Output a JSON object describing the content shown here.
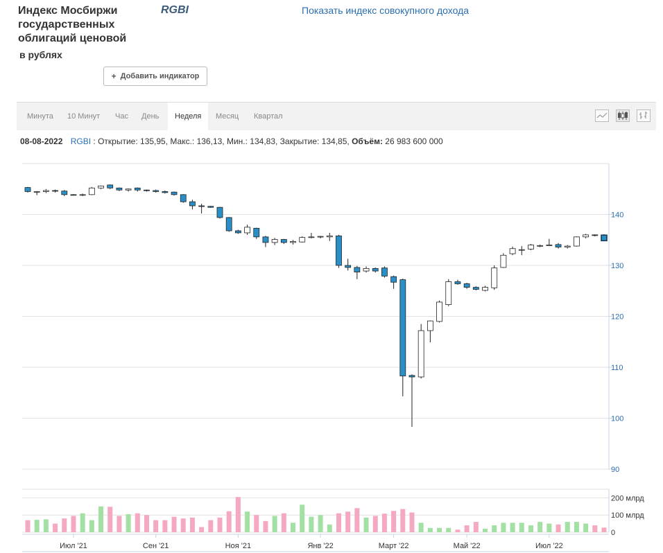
{
  "header": {
    "title": "Индекс Мосбиржи государственных облигаций ценовой",
    "subtitle": "в рублях",
    "ticker": "RGBI",
    "show_total_return": "Показать индекс совокупного дохода",
    "add_indicator": "Добавить индикатор"
  },
  "periods": [
    "Минута",
    "10 Минут",
    "Час",
    "День",
    "Неделя",
    "Месяц",
    "Квартал"
  ],
  "active_period": "Неделя",
  "chart_types": [
    "line-chart-icon",
    "candlestick-chart-icon",
    "ohlc-bars-icon"
  ],
  "info": {
    "date": "08-08-2022",
    "symbol": "RGBI",
    "open_text": "Открытие: 135,95",
    "high_text": "Макс.: 136,13",
    "low_text": "Мин.: 134,83",
    "close_text": "Закрытие: 134,85",
    "volume_label": "Объём:",
    "volume_value": "26 983 600 000"
  },
  "colors": {
    "up": "#ffffff",
    "down": "#2b8fc7",
    "vol_up": "#a3e0a3",
    "vol_down": "#f5a9c0",
    "axis_text": "#2a6db0"
  },
  "chart_data": {
    "type": "candlestick",
    "ylim": [
      90,
      150
    ],
    "y_ticks": [
      90,
      100,
      110,
      120,
      130,
      140
    ],
    "y_tick_labels": [
      "90",
      "100",
      "110",
      "120",
      "130",
      "140"
    ],
    "vol_ticks": [
      0,
      100,
      200
    ],
    "vol_tick_labels": [
      "0",
      "100 млрд",
      "200 млрд"
    ],
    "vol_ylim": [
      0,
      250
    ],
    "x_tick_labels": [
      {
        "label": "Июл '21",
        "index": 5
      },
      {
        "label": "Сен '21",
        "index": 14
      },
      {
        "label": "Ноя '21",
        "index": 23
      },
      {
        "label": "Янв '22",
        "index": 32
      },
      {
        "label": "Март '22",
        "index": 40
      },
      {
        "label": "Май '22",
        "index": 48
      },
      {
        "label": "Июл '22",
        "index": 57
      }
    ],
    "candles": [
      {
        "o": 145.3,
        "h": 145.4,
        "l": 144.3,
        "c": 144.5,
        "v": 70
      },
      {
        "o": 144.4,
        "h": 144.6,
        "l": 143.8,
        "c": 144.5,
        "v": 72
      },
      {
        "o": 144.5,
        "h": 145.0,
        "l": 144.2,
        "c": 144.7,
        "v": 75
      },
      {
        "o": 144.7,
        "h": 144.9,
        "l": 144.3,
        "c": 144.6,
        "v": 50
      },
      {
        "o": 144.6,
        "h": 144.8,
        "l": 143.6,
        "c": 143.9,
        "v": 80
      },
      {
        "o": 143.9,
        "h": 144.0,
        "l": 143.7,
        "c": 143.8,
        "v": 95
      },
      {
        "o": 143.8,
        "h": 144.1,
        "l": 143.6,
        "c": 143.9,
        "v": 110
      },
      {
        "o": 143.9,
        "h": 145.4,
        "l": 143.8,
        "c": 145.2,
        "v": 70
      },
      {
        "o": 145.2,
        "h": 145.7,
        "l": 145.0,
        "c": 145.6,
        "v": 150
      },
      {
        "o": 145.8,
        "h": 145.9,
        "l": 145.0,
        "c": 145.2,
        "v": 148
      },
      {
        "o": 145.2,
        "h": 145.3,
        "l": 144.6,
        "c": 144.8,
        "v": 95
      },
      {
        "o": 144.8,
        "h": 145.1,
        "l": 144.5,
        "c": 145.0,
        "v": 105
      },
      {
        "o": 145.2,
        "h": 145.3,
        "l": 144.5,
        "c": 144.8,
        "v": 110
      },
      {
        "o": 144.8,
        "h": 144.9,
        "l": 144.5,
        "c": 144.7,
        "v": 100
      },
      {
        "o": 144.7,
        "h": 144.9,
        "l": 144.3,
        "c": 144.5,
        "v": 70
      },
      {
        "o": 144.5,
        "h": 144.7,
        "l": 144.1,
        "c": 144.3,
        "v": 70
      },
      {
        "o": 144.4,
        "h": 144.5,
        "l": 143.7,
        "c": 143.9,
        "v": 90
      },
      {
        "o": 143.9,
        "h": 144.0,
        "l": 142.3,
        "c": 142.5,
        "v": 80
      },
      {
        "o": 142.5,
        "h": 142.9,
        "l": 141.0,
        "c": 141.7,
        "v": 85
      },
      {
        "o": 141.7,
        "h": 142.1,
        "l": 140.2,
        "c": 141.6,
        "v": 30
      },
      {
        "o": 141.6,
        "h": 141.7,
        "l": 141.3,
        "c": 141.4,
        "v": 70
      },
      {
        "o": 141.4,
        "h": 141.5,
        "l": 139.2,
        "c": 139.4,
        "v": 85
      },
      {
        "o": 139.4,
        "h": 139.5,
        "l": 136.6,
        "c": 136.8,
        "v": 122
      },
      {
        "o": 136.8,
        "h": 137.0,
        "l": 136.2,
        "c": 136.4,
        "v": 205
      },
      {
        "o": 136.4,
        "h": 138.0,
        "l": 136.0,
        "c": 137.5,
        "v": 120
      },
      {
        "o": 137.3,
        "h": 137.4,
        "l": 135.2,
        "c": 135.6,
        "v": 100
      },
      {
        "o": 135.6,
        "h": 135.8,
        "l": 133.6,
        "c": 134.5,
        "v": 65
      },
      {
        "o": 134.5,
        "h": 135.4,
        "l": 134.0,
        "c": 135.1,
        "v": 95
      },
      {
        "o": 135.1,
        "h": 135.2,
        "l": 134.2,
        "c": 134.5,
        "v": 110
      },
      {
        "o": 134.5,
        "h": 135.0,
        "l": 134.1,
        "c": 134.7,
        "v": 55
      },
      {
        "o": 134.6,
        "h": 135.7,
        "l": 134.5,
        "c": 135.5,
        "v": 160
      },
      {
        "o": 135.5,
        "h": 136.4,
        "l": 135.3,
        "c": 135.6,
        "v": 90
      },
      {
        "o": 135.6,
        "h": 135.8,
        "l": 135.3,
        "c": 135.7,
        "v": 100
      },
      {
        "o": 135.6,
        "h": 136.4,
        "l": 134.8,
        "c": 135.8,
        "v": 45
      },
      {
        "o": 135.8,
        "h": 136.0,
        "l": 129.5,
        "c": 130.0,
        "v": 110
      },
      {
        "o": 130.0,
        "h": 131.3,
        "l": 129.0,
        "c": 129.6,
        "v": 120
      },
      {
        "o": 129.6,
        "h": 129.9,
        "l": 127.3,
        "c": 128.7,
        "v": 140
      },
      {
        "o": 128.9,
        "h": 129.8,
        "l": 128.6,
        "c": 129.4,
        "v": 85
      },
      {
        "o": 129.4,
        "h": 129.6,
        "l": 128.6,
        "c": 128.9,
        "v": 95
      },
      {
        "o": 129.5,
        "h": 129.8,
        "l": 127.6,
        "c": 127.9,
        "v": 108
      },
      {
        "o": 127.8,
        "h": 128.0,
        "l": 125.4,
        "c": 126.7,
        "v": 124
      },
      {
        "o": 127.2,
        "h": 127.4,
        "l": 104.3,
        "c": 108.3,
        "v": 135
      },
      {
        "o": 108.4,
        "h": 108.6,
        "l": 98.3,
        "c": 108.1,
        "v": 115
      },
      {
        "o": 108.1,
        "h": 118.5,
        "l": 107.8,
        "c": 117.2,
        "v": 55
      },
      {
        "o": 117.2,
        "h": 119.2,
        "l": 114.9,
        "c": 119.1,
        "v": 25
      },
      {
        "o": 119.0,
        "h": 123.1,
        "l": 118.8,
        "c": 122.8,
        "v": 25
      },
      {
        "o": 122.3,
        "h": 127.3,
        "l": 122.0,
        "c": 126.8,
        "v": 25
      },
      {
        "o": 126.8,
        "h": 127.2,
        "l": 126.2,
        "c": 126.4,
        "v": 15
      },
      {
        "o": 126.4,
        "h": 126.6,
        "l": 125.4,
        "c": 125.7,
        "v": 40
      },
      {
        "o": 125.7,
        "h": 125.9,
        "l": 125.1,
        "c": 125.3,
        "v": 60
      },
      {
        "o": 125.1,
        "h": 126.0,
        "l": 124.9,
        "c": 125.7,
        "v": 20
      },
      {
        "o": 125.6,
        "h": 130.0,
        "l": 125.2,
        "c": 129.5,
        "v": 40
      },
      {
        "o": 129.6,
        "h": 132.4,
        "l": 129.5,
        "c": 132.0,
        "v": 55
      },
      {
        "o": 132.3,
        "h": 133.7,
        "l": 132.0,
        "c": 133.3,
        "v": 55
      },
      {
        "o": 133.0,
        "h": 133.8,
        "l": 132.0,
        "c": 133.1,
        "v": 55
      },
      {
        "o": 133.2,
        "h": 134.2,
        "l": 133.0,
        "c": 134.0,
        "v": 40
      },
      {
        "o": 133.8,
        "h": 134.1,
        "l": 133.6,
        "c": 133.9,
        "v": 60
      },
      {
        "o": 133.9,
        "h": 135.2,
        "l": 133.8,
        "c": 134.0,
        "v": 50
      },
      {
        "o": 134.1,
        "h": 134.4,
        "l": 133.3,
        "c": 133.6,
        "v": 45
      },
      {
        "o": 133.6,
        "h": 134.0,
        "l": 133.3,
        "c": 133.8,
        "v": 60
      },
      {
        "o": 133.8,
        "h": 135.7,
        "l": 133.7,
        "c": 135.6,
        "v": 60
      },
      {
        "o": 135.6,
        "h": 136.2,
        "l": 135.3,
        "c": 136.0,
        "v": 50
      },
      {
        "o": 136.0,
        "h": 136.1,
        "l": 135.7,
        "c": 135.9,
        "v": 40
      },
      {
        "o": 135.95,
        "h": 136.13,
        "l": 134.83,
        "c": 134.85,
        "v": 27
      }
    ]
  }
}
